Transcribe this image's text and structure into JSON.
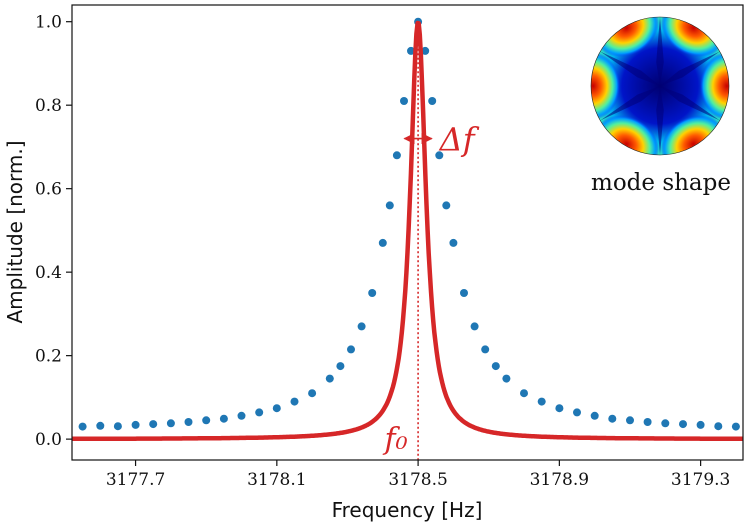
{
  "chart_data": {
    "type": "scatter",
    "xlabel": "Frequency [Hz]",
    "ylabel": "Amplitude [norm.]",
    "xlim": [
      3177.52,
      3179.42
    ],
    "ylim": [
      -0.05,
      1.04
    ],
    "xticks": [
      3177.7,
      3178.1,
      3178.5,
      3178.9,
      3179.3
    ],
    "xtick_labels": [
      "3177.7",
      "3178.1",
      "3178.5",
      "3178.9",
      "3179.3"
    ],
    "yticks": [
      0.0,
      0.2,
      0.4,
      0.6,
      0.8,
      1.0
    ],
    "ytick_labels": [
      "0.0",
      "0.2",
      "0.4",
      "0.6",
      "0.8",
      "1.0"
    ],
    "grid": false,
    "series": [
      {
        "kind": "measured",
        "color": "#1f77b4",
        "marker": "dot",
        "points": [
          [
            3177.55,
            0.03
          ],
          [
            3177.6,
            0.032
          ],
          [
            3177.65,
            0.031
          ],
          [
            3177.7,
            0.034
          ],
          [
            3177.75,
            0.036
          ],
          [
            3177.8,
            0.038
          ],
          [
            3177.85,
            0.041
          ],
          [
            3177.9,
            0.045
          ],
          [
            3177.95,
            0.049
          ],
          [
            3178.0,
            0.056
          ],
          [
            3178.05,
            0.064
          ],
          [
            3178.1,
            0.074
          ],
          [
            3178.15,
            0.09
          ],
          [
            3178.2,
            0.11
          ],
          [
            3178.25,
            0.145
          ],
          [
            3178.28,
            0.175
          ],
          [
            3178.31,
            0.215
          ],
          [
            3178.34,
            0.27
          ],
          [
            3178.37,
            0.35
          ],
          [
            3178.4,
            0.47
          ],
          [
            3178.42,
            0.56
          ],
          [
            3178.44,
            0.68
          ],
          [
            3178.46,
            0.81
          ],
          [
            3178.48,
            0.93
          ],
          [
            3178.5,
            1.0
          ],
          [
            3178.52,
            0.93
          ],
          [
            3178.54,
            0.81
          ],
          [
            3178.56,
            0.68
          ],
          [
            3178.58,
            0.56
          ],
          [
            3178.6,
            0.47
          ],
          [
            3178.63,
            0.35
          ],
          [
            3178.66,
            0.27
          ],
          [
            3178.69,
            0.215
          ],
          [
            3178.72,
            0.175
          ],
          [
            3178.75,
            0.145
          ],
          [
            3178.8,
            0.11
          ],
          [
            3178.85,
            0.09
          ],
          [
            3178.9,
            0.074
          ],
          [
            3178.95,
            0.064
          ],
          [
            3179.0,
            0.056
          ],
          [
            3179.05,
            0.049
          ],
          [
            3179.1,
            0.045
          ],
          [
            3179.15,
            0.041
          ],
          [
            3179.2,
            0.038
          ],
          [
            3179.25,
            0.036
          ],
          [
            3179.3,
            0.034
          ],
          [
            3179.35,
            0.031
          ],
          [
            3179.4,
            0.03
          ]
        ]
      },
      {
        "kind": "fit",
        "type": "line",
        "color": "#d62728",
        "model": "lorentzian",
        "center": 3178.5,
        "fwhm": 0.054,
        "amplitude": 1.0
      }
    ],
    "annotations": {
      "f0_label": "f₀",
      "f0_position": 3178.5,
      "df_label": "Δf",
      "df_level": 0.72,
      "color": "#d62728"
    },
    "inset": {
      "caption": "mode shape",
      "lobes": 6
    }
  }
}
